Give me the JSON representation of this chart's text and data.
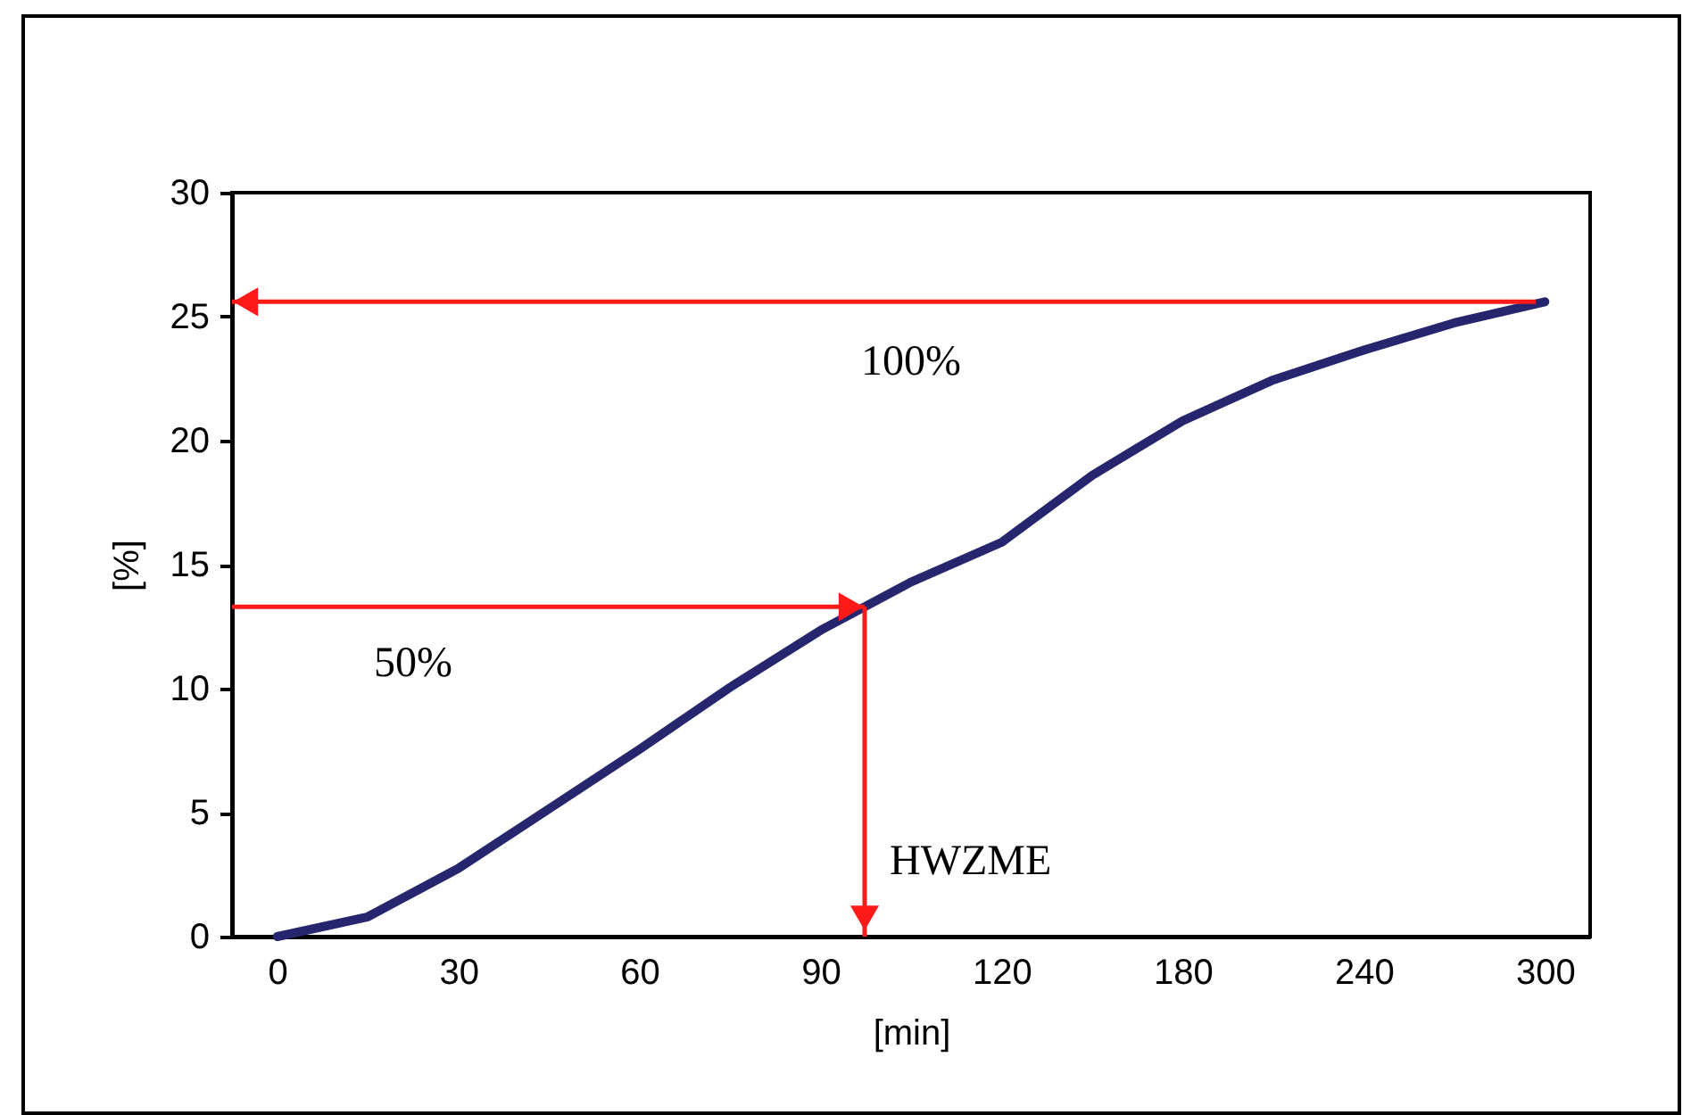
{
  "chart_data": {
    "type": "line",
    "categories": [
      "0",
      null,
      "30",
      null,
      "60",
      null,
      "90",
      null,
      "120",
      null,
      "180",
      null,
      "240",
      null,
      "300"
    ],
    "series": [
      {
        "color": "#26266e",
        "values": [
          0,
          0.8,
          2.75,
          5.15,
          7.55,
          10.05,
          12.35,
          14.3,
          15.9,
          18.6,
          20.8,
          22.45,
          23.65,
          24.75,
          25.6
        ]
      }
    ],
    "xlabel": "[min]",
    "ylabel": "[%]",
    "ylim": [
      0,
      30
    ],
    "yticks": [
      0,
      5,
      10,
      15,
      20,
      25,
      30
    ],
    "ref_lines": [
      {
        "axis": "y",
        "value": 25.6,
        "color": "#ff1a1a"
      },
      {
        "axis": "y",
        "value": 13.3,
        "color": "#ff1a1a"
      }
    ],
    "annotations": [
      "100%",
      "50%",
      "HWZME"
    ],
    "grid": false,
    "marker": "none",
    "line_style": "solid"
  }
}
